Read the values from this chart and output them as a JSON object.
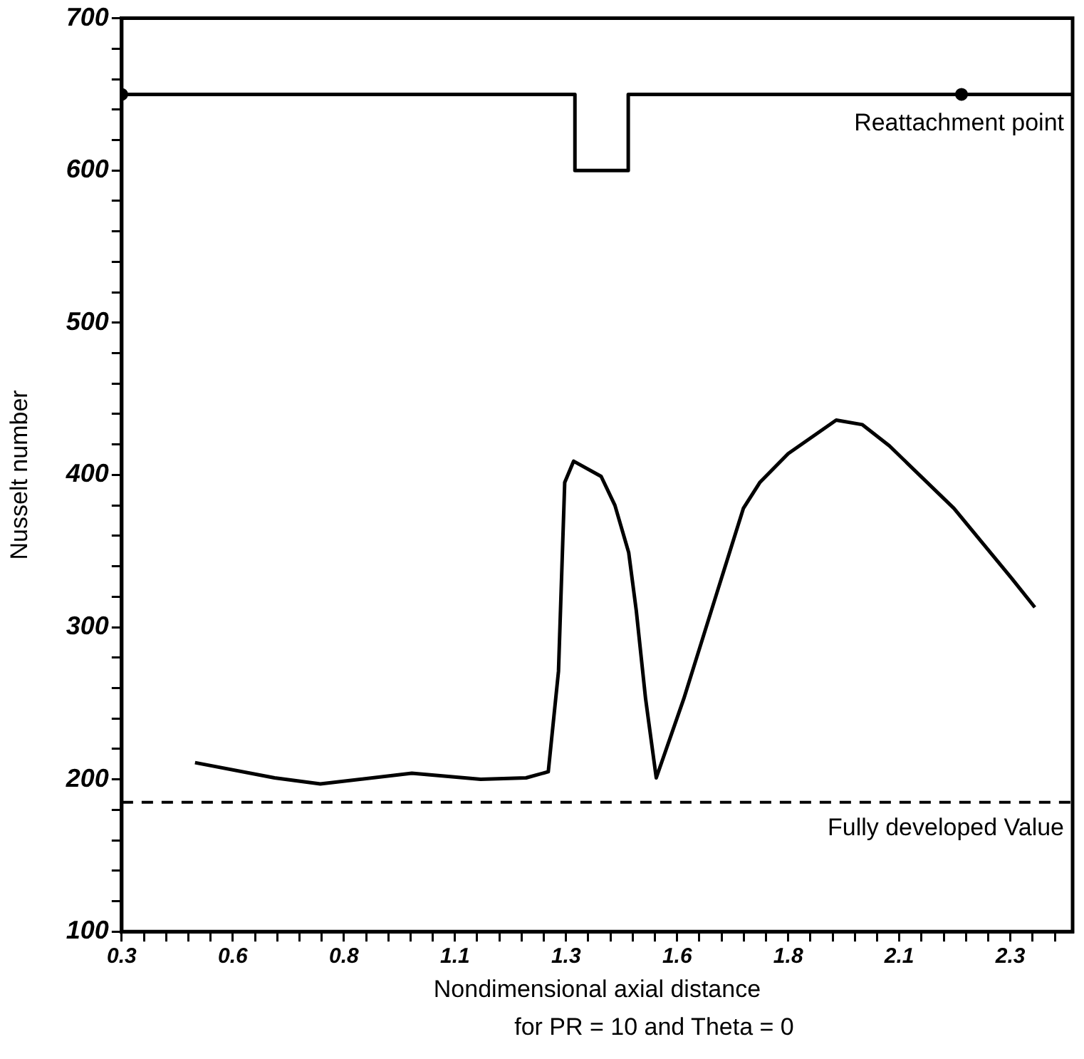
{
  "chart_data": {
    "type": "line",
    "xlabel": "Nondimensional axial distance",
    "ylabel": "Nusselt number",
    "annotations": [
      {
        "text": "Reattachment point",
        "x": 2.44,
        "y": 650
      },
      "for PR = 10 and Theta = 0"
    ],
    "xlim": [
      0.3,
      2.44
    ],
    "ylim": [
      100,
      700
    ],
    "xticks": [
      {
        "value": 0.3,
        "label": "0.3"
      },
      {
        "value": 0.35,
        "label": null
      },
      {
        "value": 0.4,
        "label": null
      },
      {
        "value": 0.45,
        "label": null
      },
      {
        "value": 0.5,
        "label": null
      },
      {
        "value": 0.55,
        "label": "0.6"
      },
      {
        "value": 0.6,
        "label": null
      },
      {
        "value": 0.65,
        "label": null
      },
      {
        "value": 0.7,
        "label": null
      },
      {
        "value": 0.75,
        "label": null
      },
      {
        "value": 0.8,
        "label": "0.8"
      },
      {
        "value": 0.85,
        "label": null
      },
      {
        "value": 0.9,
        "label": null
      },
      {
        "value": 0.95,
        "label": null
      },
      {
        "value": 1.0,
        "label": null
      },
      {
        "value": 1.05,
        "label": "1.1"
      },
      {
        "value": 1.1,
        "label": null
      },
      {
        "value": 1.15,
        "label": null
      },
      {
        "value": 1.2,
        "label": null
      },
      {
        "value": 1.25,
        "label": null
      },
      {
        "value": 1.3,
        "label": "1.3"
      },
      {
        "value": 1.35,
        "label": null
      },
      {
        "value": 1.4,
        "label": null
      },
      {
        "value": 1.45,
        "label": null
      },
      {
        "value": 1.5,
        "label": null
      },
      {
        "value": 1.55,
        "label": "1.6"
      },
      {
        "value": 1.6,
        "label": null
      },
      {
        "value": 1.65,
        "label": null
      },
      {
        "value": 1.7,
        "label": null
      },
      {
        "value": 1.75,
        "label": null
      },
      {
        "value": 1.8,
        "label": "1.8"
      },
      {
        "value": 1.85,
        "label": null
      },
      {
        "value": 1.9,
        "label": null
      },
      {
        "value": 1.95,
        "label": null
      },
      {
        "value": 2.0,
        "label": null
      },
      {
        "value": 2.05,
        "label": "2.1"
      },
      {
        "value": 2.1,
        "label": null
      },
      {
        "value": 2.15,
        "label": null
      },
      {
        "value": 2.2,
        "label": null
      },
      {
        "value": 2.25,
        "label": null
      },
      {
        "value": 2.3,
        "label": "2.3"
      },
      {
        "value": 2.35,
        "label": null
      },
      {
        "value": 2.4,
        "label": null
      }
    ],
    "yticks": [
      100,
      {
        "value": 120,
        "label": null
      },
      {
        "value": 140,
        "label": null
      },
      {
        "value": 160,
        "label": null
      },
      {
        "value": 180,
        "label": null
      },
      200,
      {
        "value": 220,
        "label": null
      },
      {
        "value": 240,
        "label": null
      },
      {
        "value": 260,
        "label": null
      },
      {
        "value": 280,
        "label": null
      },
      300,
      {
        "value": 320,
        "label": null
      },
      {
        "value": 340,
        "label": null
      },
      {
        "value": 360,
        "label": null
      },
      {
        "value": 380,
        "label": null
      },
      400,
      {
        "value": 420,
        "label": null
      },
      {
        "value": 440,
        "label": null
      },
      {
        "value": 460,
        "label": null
      },
      {
        "value": 480,
        "label": null
      },
      500,
      {
        "value": 520,
        "label": null
      },
      {
        "value": 540,
        "label": null
      },
      {
        "value": 560,
        "label": null
      },
      {
        "value": 580,
        "label": null
      },
      600,
      {
        "value": 620,
        "label": null
      },
      {
        "value": 640,
        "label": null
      },
      {
        "value": 660,
        "label": null
      },
      {
        "value": 680,
        "label": null
      },
      700
    ],
    "grid": false,
    "legend": false,
    "line_style": "solid",
    "series": [
      {
        "color": "#000000",
        "marker": "none",
        "x": [
          0.465,
          0.644,
          0.747,
          0.953,
          1.108,
          1.21,
          1.26,
          1.283,
          1.297,
          1.317,
          1.379,
          1.41,
          1.441,
          1.458,
          1.479,
          1.503,
          1.565,
          1.64,
          1.699,
          1.736,
          1.8,
          1.908,
          1.967,
          2.028,
          2.173,
          2.303,
          2.355
        ],
        "values": [
          211,
          201,
          197,
          204,
          200,
          201,
          205,
          271,
          395,
          409,
          399,
          380,
          349,
          311,
          253,
          201,
          253,
          323,
          378,
          395,
          414,
          436,
          433,
          419,
          378,
          332,
          313
        ]
      },
      {
        "color": "#000000",
        "marker": "none",
        "x": [
          0.3,
          1.32,
          1.32,
          1.44,
          1.44,
          2.44
        ],
        "values": [
          650,
          650,
          600,
          600,
          650,
          650
        ]
      },
      {
        "type": "scatter",
        "color": "#000000",
        "marker": "circle",
        "x": [
          0.3,
          2.19
        ],
        "values": [
          650,
          650
        ]
      }
    ],
    "ref_lines": [
      {
        "axis": "y",
        "value": 185,
        "label": "Fully developed Value",
        "line_style": "dashed",
        "color": "#000000"
      }
    ]
  }
}
